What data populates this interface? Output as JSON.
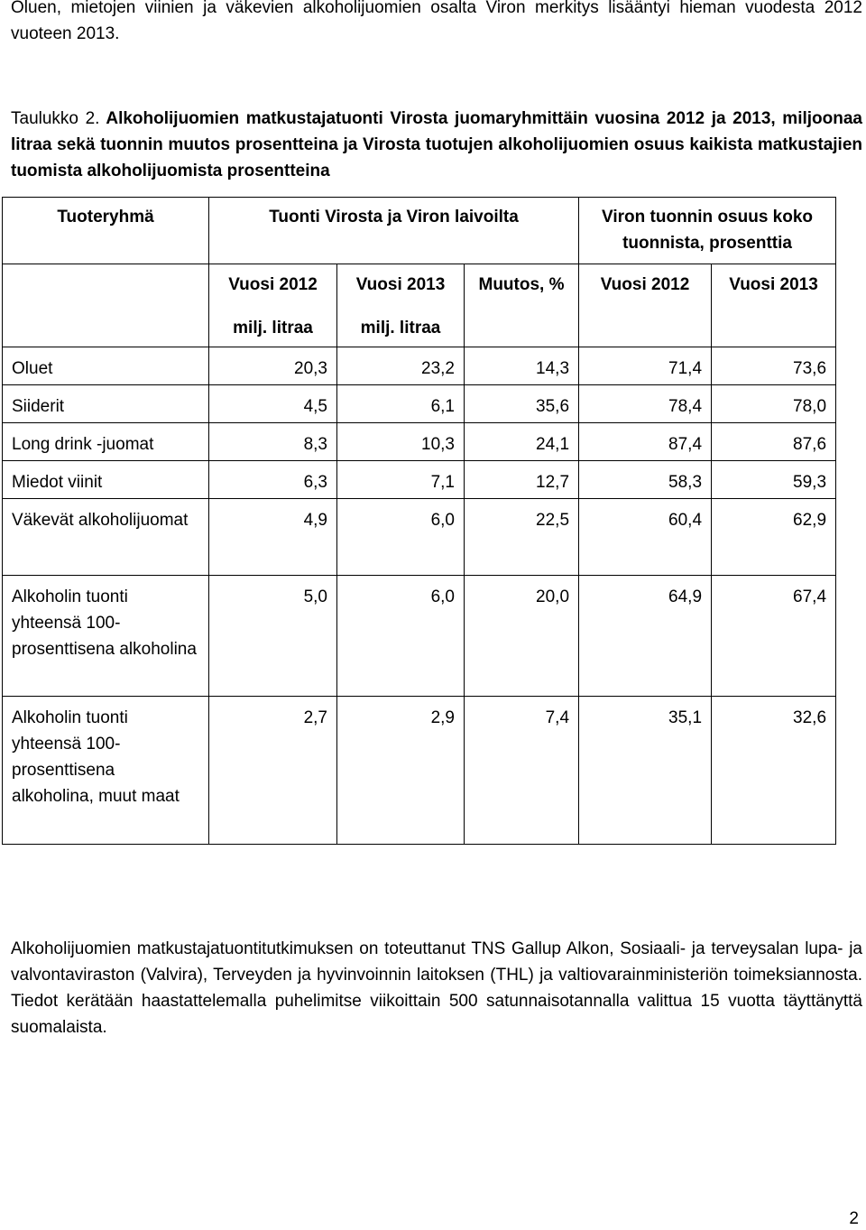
{
  "intro": "Oluen, mietojen viinien ja väkevien alkoholijuomien osalta Viron merkitys lisääntyi hieman vuodesta 2012 vuoteen 2013.",
  "caption": {
    "label": "Taulukko 2.",
    "text": "Alkoholijuomien matkustajatuonti Virosta juomaryhmittäin vuosina 2012 ja 2013, miljoonaa litraa sekä tuonnin muutos prosentteina ja Virosta tuotujen alkoholijuomien osuus kaikista matkustajien tuomista alkoholijuomista prosentteina"
  },
  "table": {
    "header_top": {
      "group": "Tuoteryhmä",
      "import": "Tuonti Virosta ja Viron laivoilta",
      "share": "Viron tuonnin osuus koko tuonnista, prosenttia"
    },
    "header_sub": {
      "y2012": "Vuosi 2012",
      "y2012_unit": "milj. litraa",
      "y2013": "Vuosi 2013",
      "y2013_unit": "milj. litraa",
      "change": "Muutos, %",
      "share2012": "Vuosi 2012",
      "share2013": "Vuosi 2013"
    },
    "rows": [
      {
        "group": "Oluet",
        "v2012": "20,3",
        "v2013": "23,2",
        "change": "14,3",
        "s2012": "71,4",
        "s2013": "73,6"
      },
      {
        "group": "Siiderit",
        "v2012": "4,5",
        "v2013": "6,1",
        "change": "35,6",
        "s2012": "78,4",
        "s2013": "78,0"
      },
      {
        "group": "Long drink -juomat",
        "v2012": "8,3",
        "v2013": "10,3",
        "change": "24,1",
        "s2012": "87,4",
        "s2013": "87,6"
      },
      {
        "group": "Miedot viinit",
        "v2012": "6,3",
        "v2013": "7,1",
        "change": "12,7",
        "s2012": "58,3",
        "s2013": "59,3"
      },
      {
        "group": "Väkevät alkoholijuomat",
        "v2012": "4,9",
        "v2013": "6,0",
        "change": "22,5",
        "s2012": "60,4",
        "s2013": "62,9"
      },
      {
        "group": "Alkoholin tuonti yhteensä 100-prosenttisena alkoholina",
        "v2012": "5,0",
        "v2013": "6,0",
        "change": "20,0",
        "s2012": "64,9",
        "s2013": "67,4"
      },
      {
        "group": "Alkoholin tuonti yhteensä 100-prosenttisena alkoholina, muut maat",
        "v2012": "2,7",
        "v2013": "2,9",
        "change": "7,4",
        "s2012": "35,1",
        "s2013": "32,6"
      }
    ]
  },
  "footnote": "Alkoholijuomien matkustajatuontitutkimuksen on toteuttanut TNS Gallup Alkon, Sosiaali- ja terveysalan lupa- ja valvontaviraston (Valvira), Terveyden ja hyvinvoinnin laitoksen (THL) ja valtiovarainministeriön toimeksiannosta. Tiedot kerätään haastattelemalla puhelimitse viikoittain 500 satunnaisotannalla valittua 15 vuotta täyttänyttä suomalaista.",
  "page_number": "2"
}
